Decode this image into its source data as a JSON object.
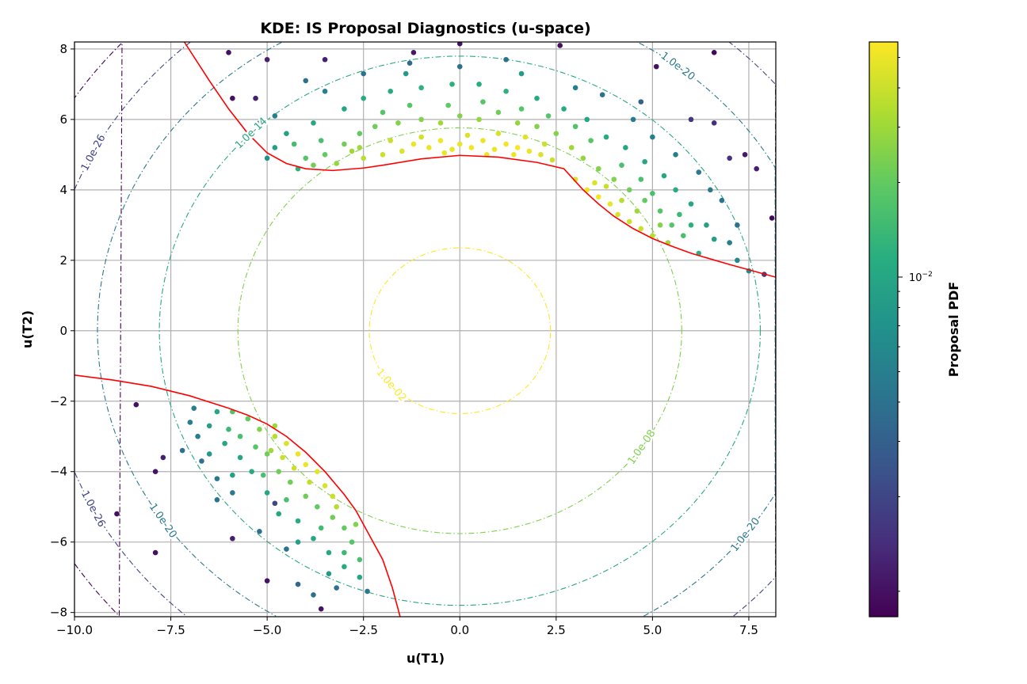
{
  "chart_data": {
    "type": "scatter",
    "title": "KDE: IS Proposal Diagnostics (u-space)",
    "xlabel": "u(T1)",
    "ylabel": "u(T2)",
    "xlim": [
      -10,
      8.2
    ],
    "ylim": [
      -8.12,
      8.2
    ],
    "xticks": [
      -10,
      -7.5,
      -5,
      -2.5,
      0,
      2.5,
      5,
      7.5
    ],
    "xtick_labels": [
      "−10.0",
      "−7.5",
      "−5.0",
      "−2.5",
      "0.0",
      "2.5",
      "5.0",
      "7.5"
    ],
    "yticks": [
      -8,
      -6,
      -4,
      -2,
      0,
      2,
      4,
      6,
      8
    ],
    "ytick_labels": [
      "−8",
      "−6",
      "−4",
      "−2",
      "0",
      "2",
      "4",
      "6",
      "8"
    ],
    "grid": true,
    "colormap": "viridis",
    "colorbar": {
      "label": "Proposal PDF",
      "scale": "log",
      "range": [
        0.00083,
        0.056
      ],
      "tick_label": "10",
      "tick_exp": "−2",
      "tick_value": 0.01
    },
    "contours": {
      "style": "dash-dot",
      "levels": [
        {
          "value": 0.01,
          "label": "1.0e-02"
        },
        {
          "value": 1e-08,
          "label": "1.0e-08"
        },
        {
          "value": 1e-14,
          "label": "1.0e-14"
        },
        {
          "value": 1e-20,
          "label": "1.0e-20"
        },
        {
          "value": 1e-26,
          "label": "1.0e-26"
        },
        {
          "value": 1e-32,
          "label": ""
        }
      ]
    },
    "limit_state_color": "#ff0000",
    "limit_state_curves": [
      [
        [
          -7.15,
          8.2
        ],
        [
          -6.5,
          7.1
        ],
        [
          -6,
          6.3
        ],
        [
          -5.5,
          5.6
        ],
        [
          -5,
          5.05
        ],
        [
          -4.5,
          4.75
        ],
        [
          -4,
          4.6
        ],
        [
          -3.3,
          4.55
        ],
        [
          -2.5,
          4.62
        ],
        [
          -2,
          4.7
        ],
        [
          -1,
          4.88
        ],
        [
          0,
          4.98
        ],
        [
          1,
          4.93
        ],
        [
          2,
          4.78
        ],
        [
          2.7,
          4.6
        ],
        [
          3.2,
          4.0
        ],
        [
          3.6,
          3.6
        ],
        [
          4,
          3.25
        ],
        [
          4.5,
          2.9
        ],
        [
          5,
          2.62
        ],
        [
          5.5,
          2.4
        ],
        [
          6,
          2.2
        ],
        [
          7,
          1.88
        ],
        [
          8.2,
          1.52
        ]
      ],
      [
        [
          -10,
          -1.26
        ],
        [
          -9,
          -1.4
        ],
        [
          -8,
          -1.58
        ],
        [
          -7,
          -1.85
        ],
        [
          -6,
          -2.2
        ],
        [
          -5.5,
          -2.4
        ],
        [
          -5,
          -2.65
        ],
        [
          -4.5,
          -3.0
        ],
        [
          -4,
          -3.45
        ],
        [
          -3.5,
          -4.0
        ],
        [
          -3,
          -4.65
        ],
        [
          -2.7,
          -5.1
        ],
        [
          -2.4,
          -5.7
        ],
        [
          -2,
          -6.5
        ],
        [
          -1.75,
          -7.3
        ],
        [
          -1.55,
          -8.12
        ]
      ]
    ],
    "points_format": [
      "u(T1)",
      "u(T2)",
      "Proposal PDF"
    ],
    "points": [
      [
        -2,
        5.0,
        0.04
      ],
      [
        -1.5,
        5.1,
        0.045
      ],
      [
        -1.2,
        5.3,
        0.05
      ],
      [
        -0.8,
        5.2,
        0.05
      ],
      [
        -0.5,
        5.4,
        0.052
      ],
      [
        -0.2,
        5.15,
        0.05
      ],
      [
        0,
        5.3,
        0.05
      ],
      [
        0.3,
        5.2,
        0.052
      ],
      [
        0.6,
        5.4,
        0.05
      ],
      [
        0.9,
        5.15,
        0.05
      ],
      [
        1.2,
        5.3,
        0.052
      ],
      [
        1.5,
        5.2,
        0.054
      ],
      [
        1.8,
        5.1,
        0.05
      ],
      [
        2.1,
        5.0,
        0.045
      ],
      [
        2.4,
        4.85,
        0.04
      ],
      [
        -1.8,
        5.4,
        0.04
      ],
      [
        -1,
        5.5,
        0.042
      ],
      [
        0.2,
        5.55,
        0.045
      ],
      [
        1,
        5.6,
        0.044
      ],
      [
        1.7,
        5.5,
        0.046
      ],
      [
        2.2,
        5.3,
        0.04
      ],
      [
        -2.5,
        4.9,
        0.035
      ],
      [
        -2.8,
        5.1,
        0.03
      ],
      [
        -0.4,
        5.05,
        0.05
      ],
      [
        0.7,
        5.0,
        0.05
      ],
      [
        1.4,
        5.0,
        0.05
      ],
      [
        3.0,
        4.3,
        0.045
      ],
      [
        3.3,
        4.0,
        0.05
      ],
      [
        3.6,
        3.8,
        0.052
      ],
      [
        3.9,
        3.6,
        0.05
      ],
      [
        3.5,
        4.2,
        0.045
      ],
      [
        4.1,
        3.3,
        0.045
      ],
      [
        4.4,
        3.1,
        0.042
      ],
      [
        4.7,
        2.9,
        0.04
      ],
      [
        5.0,
        2.7,
        0.035
      ],
      [
        4.2,
        3.7,
        0.035
      ],
      [
        3.8,
        4.1,
        0.04
      ],
      [
        4.6,
        3.4,
        0.03
      ],
      [
        5.2,
        3.0,
        0.025
      ],
      [
        -4,
        4.9,
        0.018
      ],
      [
        -3.5,
        5.0,
        0.02
      ],
      [
        -3,
        5.3,
        0.022
      ],
      [
        -2.6,
        5.6,
        0.02
      ],
      [
        -2.2,
        5.8,
        0.022
      ],
      [
        -1.6,
        5.9,
        0.025
      ],
      [
        -1,
        6.0,
        0.025
      ],
      [
        -0.5,
        5.9,
        0.03
      ],
      [
        0,
        6.1,
        0.025
      ],
      [
        0.5,
        6.0,
        0.028
      ],
      [
        1,
        6.2,
        0.022
      ],
      [
        1.5,
        5.9,
        0.028
      ],
      [
        2,
        5.8,
        0.025
      ],
      [
        2.5,
        5.6,
        0.025
      ],
      [
        2.9,
        5.2,
        0.03
      ],
      [
        3.2,
        4.9,
        0.028
      ],
      [
        3.6,
        4.6,
        0.025
      ],
      [
        4,
        4.3,
        0.025
      ],
      [
        4.4,
        4.0,
        0.022
      ],
      [
        4.8,
        3.7,
        0.02
      ],
      [
        5.2,
        3.4,
        0.018
      ],
      [
        5.5,
        3.0,
        0.018
      ],
      [
        5.8,
        2.7,
        0.016
      ],
      [
        5.4,
        2.5,
        0.03
      ],
      [
        -3.8,
        4.7,
        0.022
      ],
      [
        -3.2,
        4.75,
        0.028
      ],
      [
        -4.3,
        5.3,
        0.015
      ],
      [
        -2,
        6.2,
        0.018
      ],
      [
        -1.3,
        6.4,
        0.018
      ],
      [
        -0.3,
        6.4,
        0.02
      ],
      [
        0.6,
        6.5,
        0.018
      ],
      [
        1.6,
        6.3,
        0.018
      ],
      [
        2.3,
        6.1,
        0.018
      ],
      [
        3,
        5.8,
        0.017
      ],
      [
        3.4,
        5.4,
        0.018
      ],
      [
        4.2,
        4.7,
        0.016
      ],
      [
        4.7,
        4.3,
        0.016
      ],
      [
        5,
        3.9,
        0.016
      ],
      [
        5.7,
        3.3,
        0.014
      ],
      [
        6.0,
        3.0,
        0.012
      ],
      [
        -2.6,
        5.2,
        0.03
      ],
      [
        -3.6,
        5.4,
        0.016
      ],
      [
        -4.5,
        5.6,
        0.009
      ],
      [
        -4.8,
        5.2,
        0.009
      ],
      [
        -3.8,
        5.9,
        0.01
      ],
      [
        -3,
        6.3,
        0.01
      ],
      [
        -2.5,
        6.6,
        0.011
      ],
      [
        -1.8,
        6.8,
        0.011
      ],
      [
        -1,
        6.9,
        0.012
      ],
      [
        -0.2,
        7.0,
        0.012
      ],
      [
        0.5,
        7.0,
        0.011
      ],
      [
        1.2,
        6.8,
        0.012
      ],
      [
        2,
        6.6,
        0.011
      ],
      [
        2.7,
        6.3,
        0.011
      ],
      [
        3.3,
        6.0,
        0.01
      ],
      [
        3.8,
        5.5,
        0.011
      ],
      [
        4.3,
        5.2,
        0.01
      ],
      [
        4.8,
        4.8,
        0.01
      ],
      [
        5.3,
        4.4,
        0.01
      ],
      [
        5.6,
        4.0,
        0.011
      ],
      [
        6.0,
        3.6,
        0.01
      ],
      [
        6.4,
        3.0,
        0.009
      ],
      [
        6.6,
        2.6,
        0.009
      ],
      [
        6.2,
        2.2,
        0.012
      ],
      [
        -4.2,
        4.6,
        0.012
      ],
      [
        -5,
        4.9,
        0.007
      ],
      [
        1.6,
        7.3,
        0.008
      ],
      [
        -1.4,
        7.3,
        0.008
      ],
      [
        -5.2,
        5.9,
        0.005
      ],
      [
        -4.8,
        6.1,
        0.005
      ],
      [
        -3.5,
        6.8,
        0.005
      ],
      [
        -2.5,
        7.3,
        0.004
      ],
      [
        -1.3,
        7.6,
        0.0035
      ],
      [
        0,
        7.5,
        0.004
      ],
      [
        1.2,
        7.7,
        0.004
      ],
      [
        3,
        6.9,
        0.005
      ],
      [
        3.7,
        6.7,
        0.004
      ],
      [
        4.5,
        6.0,
        0.0045
      ],
      [
        5.0,
        5.5,
        0.005
      ],
      [
        5.6,
        5.0,
        0.005
      ],
      [
        6.2,
        4.5,
        0.0045
      ],
      [
        6.8,
        3.7,
        0.004
      ],
      [
        7.2,
        3.0,
        0.004
      ],
      [
        7.0,
        2.5,
        0.005
      ],
      [
        7.5,
        1.7,
        0.006
      ],
      [
        7.2,
        2.0,
        0.006
      ],
      [
        6.5,
        4.0,
        0.0045
      ],
      [
        -4,
        7.1,
        0.004
      ],
      [
        4.7,
        6.5,
        0.003
      ],
      [
        -6,
        7.9,
        0.001
      ],
      [
        -5,
        7.7,
        0.0012
      ],
      [
        -5.3,
        6.6,
        0.0012
      ],
      [
        -5.9,
        6.6,
        0.001
      ],
      [
        -3.5,
        7.7,
        0.0012
      ],
      [
        -1.2,
        7.9,
        0.0011
      ],
      [
        0,
        8.15,
        0.001
      ],
      [
        2.6,
        8.1,
        0.001
      ],
      [
        5.1,
        7.5,
        0.001
      ],
      [
        6.6,
        7.9,
        0.0009
      ],
      [
        6.6,
        5.9,
        0.0014
      ],
      [
        7.4,
        5.0,
        0.0011
      ],
      [
        7.7,
        4.6,
        0.0012
      ],
      [
        8.1,
        3.2,
        0.0009
      ],
      [
        6,
        6,
        0.0016
      ],
      [
        7,
        4.9,
        0.0015
      ],
      [
        7.9,
        1.6,
        0.0018
      ],
      [
        -4.5,
        -3.2,
        0.045
      ],
      [
        -4.2,
        -3.5,
        0.05
      ],
      [
        -4,
        -3.8,
        0.05
      ],
      [
        -3.7,
        -4.0,
        0.048
      ],
      [
        -3.5,
        -4.4,
        0.045
      ],
      [
        -3.3,
        -4.7,
        0.04
      ],
      [
        -4.6,
        -3.6,
        0.04
      ],
      [
        -4.3,
        -3.9,
        0.04
      ],
      [
        -3.9,
        -4.3,
        0.038
      ],
      [
        -4.8,
        -3.0,
        0.035
      ],
      [
        -3.2,
        -5.0,
        0.035
      ],
      [
        -4.9,
        -3.4,
        0.03
      ],
      [
        -5.5,
        -2.5,
        0.02
      ],
      [
        -5.2,
        -2.8,
        0.025
      ],
      [
        -5,
        -3.5,
        0.022
      ],
      [
        -5.3,
        -3.3,
        0.018
      ],
      [
        -4.7,
        -4.0,
        0.022
      ],
      [
        -4.4,
        -4.3,
        0.022
      ],
      [
        -4,
        -4.7,
        0.022
      ],
      [
        -3.7,
        -5.0,
        0.02
      ],
      [
        -3.3,
        -5.3,
        0.022
      ],
      [
        -3,
        -5.6,
        0.02
      ],
      [
        -2.7,
        -5.5,
        0.025
      ],
      [
        -2.8,
        -6.0,
        0.018
      ],
      [
        -5.7,
        -3.0,
        0.016
      ],
      [
        -5.1,
        -4.1,
        0.016
      ],
      [
        -4.5,
        -4.8,
        0.016
      ],
      [
        -3.6,
        -5.6,
        0.015
      ],
      [
        -5.9,
        -2.3,
        0.017
      ],
      [
        -6,
        -2.8,
        0.014
      ],
      [
        -3,
        -6.3,
        0.014
      ],
      [
        -4.8,
        -2.7,
        0.03
      ],
      [
        -2.6,
        -6.5,
        0.016
      ],
      [
        -6.3,
        -2.3,
        0.01
      ],
      [
        -6.5,
        -2.7,
        0.009
      ],
      [
        -6.1,
        -3.2,
        0.01
      ],
      [
        -5.7,
        -3.6,
        0.01
      ],
      [
        -5.4,
        -4.0,
        0.011
      ],
      [
        -5.0,
        -4.6,
        0.01
      ],
      [
        -4.7,
        -5.2,
        0.01
      ],
      [
        -4.2,
        -5.4,
        0.011
      ],
      [
        -3.8,
        -5.9,
        0.01
      ],
      [
        -3.4,
        -6.3,
        0.01
      ],
      [
        -3.0,
        -6.7,
        0.011
      ],
      [
        -2.6,
        -7.0,
        0.01
      ],
      [
        -6.5,
        -3.5,
        0.008
      ],
      [
        -5.9,
        -4.1,
        0.009
      ],
      [
        -4.2,
        -6.0,
        0.009
      ],
      [
        -3.4,
        -6.9,
        0.008
      ],
      [
        -6.9,
        -2.2,
        0.005
      ],
      [
        -7,
        -2.6,
        0.005
      ],
      [
        -6.8,
        -3.0,
        0.005
      ],
      [
        -6.7,
        -3.7,
        0.004
      ],
      [
        -6.3,
        -4.2,
        0.0045
      ],
      [
        -5.9,
        -4.6,
        0.0045
      ],
      [
        -6.3,
        -4.8,
        0.004
      ],
      [
        -5.2,
        -5.7,
        0.004
      ],
      [
        -4.5,
        -6.2,
        0.004
      ],
      [
        -4.2,
        -7.2,
        0.0035
      ],
      [
        -3.8,
        -7.5,
        0.004
      ],
      [
        -3.2,
        -7.3,
        0.004
      ],
      [
        -2.4,
        -7.4,
        0.0045
      ],
      [
        -7.2,
        -3.4,
        0.004
      ],
      [
        -8.4,
        -2.1,
        0.001
      ],
      [
        -7.7,
        -3.6,
        0.0012
      ],
      [
        -7.9,
        -4.0,
        0.001
      ],
      [
        -8.9,
        -5.2,
        0.001
      ],
      [
        -7.9,
        -6.3,
        0.001
      ],
      [
        -5.9,
        -5.9,
        0.0012
      ],
      [
        -5,
        -7.1,
        0.001
      ],
      [
        -3.6,
        -7.9,
        0.001
      ],
      [
        -4.8,
        -4.9,
        0.002
      ]
    ]
  }
}
